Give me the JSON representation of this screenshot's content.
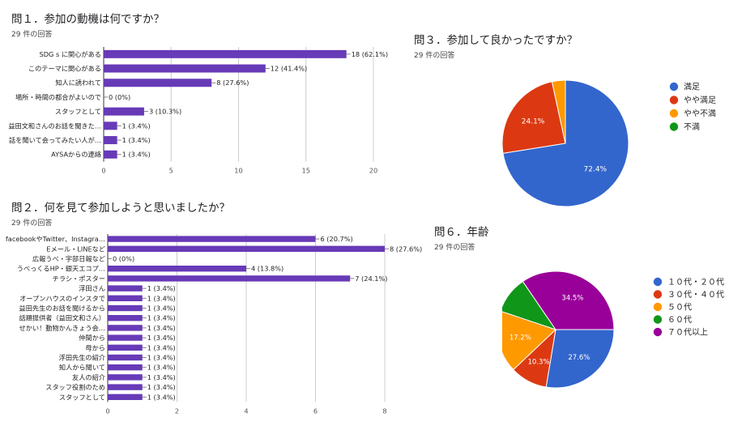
{
  "colors": {
    "bar": "#673ab7",
    "axis": "#555555",
    "grid": "#cccccc",
    "text": "#222222",
    "pie_blue": "#3366cc",
    "pie_red": "#dc3912",
    "pie_orange": "#ff9900",
    "pie_green": "#109618",
    "pie_purple": "#990099"
  },
  "chart_data": [
    {
      "id": "q1",
      "type": "bar",
      "orientation": "horizontal",
      "title": "問１．参加の動機は何ですか？",
      "subtitle": "29 件の回答",
      "categories": [
        "SDG s に関心がある",
        "このテーマに関心がある",
        "知人に誘われて",
        "場所・時間の都合がよいので",
        "スタッフとして",
        "益田文和さんのお話を聞きた…",
        "話を聞いて会ってみたい人が…",
        "AYSAからの連絡"
      ],
      "values": [
        18,
        12,
        8,
        0,
        3,
        1,
        1,
        1
      ],
      "value_labels": [
        "18 (62.1%)",
        "12 (41.4%)",
        "8 (27.6%)",
        "0 (0%)",
        "3 (10.3%)",
        "1 (3.4%)",
        "1 (3.4%)",
        "1 (3.4%)"
      ],
      "xlim": [
        0,
        20
      ],
      "xticks": [
        "0",
        "5",
        "10",
        "15",
        "20"
      ],
      "grid": true
    },
    {
      "id": "q2",
      "type": "bar",
      "orientation": "horizontal",
      "title": "問２．何を見て参加しようと思いましたか？",
      "subtitle": "29 件の回答",
      "categories": [
        "facebookやTwitter、Instagra…",
        "Eメール・LINEなど",
        "広報うべ・宇部日報など",
        "うべっくるHP・銀天エコプ…",
        "チラシ・ポスター",
        "浮田さん",
        "オープンハウスのインスタで",
        "益田先生のお話を聞けるから",
        "話題提供者（益田文和さん）",
        "せかい！動物かんきょう会…",
        "仲間から",
        "母から",
        "浮田先生の紹介",
        "知人から聞いて",
        "友人の紹介",
        "スタッフ役割のため",
        "スタッフとして"
      ],
      "values": [
        6,
        8,
        0,
        4,
        7,
        1,
        1,
        1,
        1,
        1,
        1,
        1,
        1,
        1,
        1,
        1,
        1
      ],
      "value_labels": [
        "6 (20.7%)",
        "8 (27.6%)",
        "0 (0%)",
        "4 (13.8%)",
        "7 (24.1%)",
        "1 (3.4%)",
        "1 (3.4%)",
        "1 (3.4%)",
        "1 (3.4%)",
        "1 (3.4%)",
        "1 (3.4%)",
        "1 (3.4%)",
        "1 (3.4%)",
        "1 (3.4%)",
        "1 (3.4%)",
        "1 (3.4%)",
        "1 (3.4%)"
      ],
      "xlim": [
        0,
        8
      ],
      "xticks": [
        "0",
        "2",
        "4",
        "6",
        "8"
      ],
      "grid": true
    },
    {
      "id": "q3",
      "type": "pie",
      "title": "問３．参加して良かったですか？",
      "subtitle": "29 件の回答",
      "labels": [
        "満足",
        "やや満足",
        "やや不満",
        "不満"
      ],
      "values": [
        72.4,
        24.1,
        3.4,
        0
      ],
      "slice_labels": [
        "72.4%",
        "24.1%",
        "",
        ""
      ],
      "colors": [
        "#3366cc",
        "#dc3912",
        "#ff9900",
        "#109618"
      ],
      "start": "top",
      "direction": "clockwise",
      "legend": "right"
    },
    {
      "id": "q6",
      "type": "pie",
      "title": "問６．年齢",
      "subtitle": "29 件の回答",
      "labels": [
        "１０代・２０代",
        "３０代・４０代",
        "５０代",
        "６０代",
        "７０代以上"
      ],
      "values": [
        27.6,
        10.3,
        17.2,
        10.3,
        34.5
      ],
      "slice_labels": [
        "27.6%",
        "10.3%",
        "17.2%",
        "",
        "34.5%"
      ],
      "colors": [
        "#3366cc",
        "#dc3912",
        "#ff9900",
        "#109618",
        "#990099"
      ],
      "start": "right",
      "direction": "clockwise",
      "legend": "right"
    }
  ]
}
